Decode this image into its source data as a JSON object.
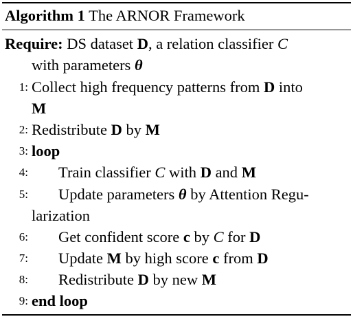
{
  "caption": {
    "label": "Algorithm 1",
    "title": "The ARNOR Framework"
  },
  "require": {
    "keyword": "Require:",
    "line1_a": "DS dataset ",
    "line1_D": "D",
    "line1_b": ", a relation classifier ",
    "line1_C": "C",
    "line2_a": "with parameters ",
    "line2_theta": "θ"
  },
  "steps": [
    {
      "num": "1:",
      "a": "Collect high frequency patterns from ",
      "D": "D",
      "b": " into",
      "cont": "M"
    },
    {
      "num": "2:",
      "a": "Redistribute ",
      "D": "D",
      "b": " by ",
      "M": "M"
    },
    {
      "num": "3:",
      "kw": "loop"
    },
    {
      "num": "4:",
      "a": "Train classifier ",
      "C": "C",
      "b": " with ",
      "D": "D",
      "c": " and ",
      "M": "M"
    },
    {
      "num": "5:",
      "a": "Update parameters ",
      "theta": "θ",
      "b": " by Attention Regu-",
      "cont": "larization"
    },
    {
      "num": "6:",
      "a": "Get confident score ",
      "c_sym": "c",
      "b": " by ",
      "C": "C",
      "c": " for ",
      "D": "D"
    },
    {
      "num": "7:",
      "a": "Update ",
      "M": "M",
      "b": " by high score ",
      "c_sym": "c",
      "c": " from ",
      "D": "D"
    },
    {
      "num": "8:",
      "a": "Redistribute ",
      "D": "D",
      "b": " by new ",
      "M": "M"
    },
    {
      "num": "9:",
      "kw": "end loop"
    }
  ]
}
